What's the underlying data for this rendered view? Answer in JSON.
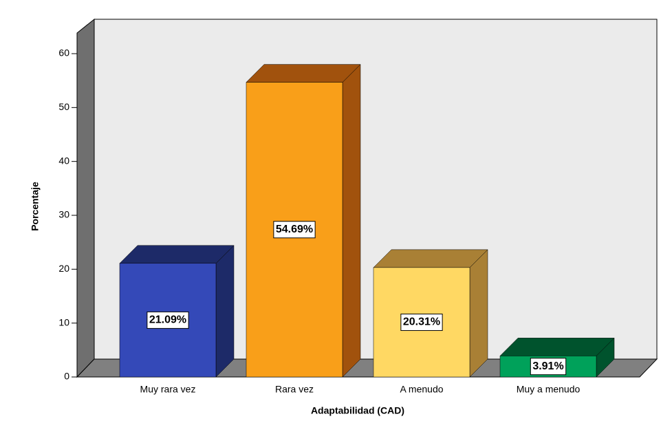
{
  "chart_data": {
    "type": "bar3d",
    "x_label": "Adaptabilidad (CAD)",
    "y_label": "Porcentaje",
    "categories": [
      "Muy rara vez",
      "Rara vez",
      "A menudo",
      "Muy a menudo"
    ],
    "values": [
      21.09,
      54.69,
      20.31,
      3.91
    ],
    "value_labels": [
      "21.09%",
      "54.69%",
      "20.31%",
      "3.91%"
    ],
    "colors": [
      "#3449b8",
      "#f99f19",
      "#ffd863",
      "#00a15a"
    ],
    "side_colors": [
      "#1d2a68",
      "#a1520d",
      "#a98035",
      "#00532d"
    ],
    "ylim": [
      0,
      60
    ],
    "yticks": [
      0,
      10,
      20,
      30,
      40,
      50,
      60
    ]
  }
}
